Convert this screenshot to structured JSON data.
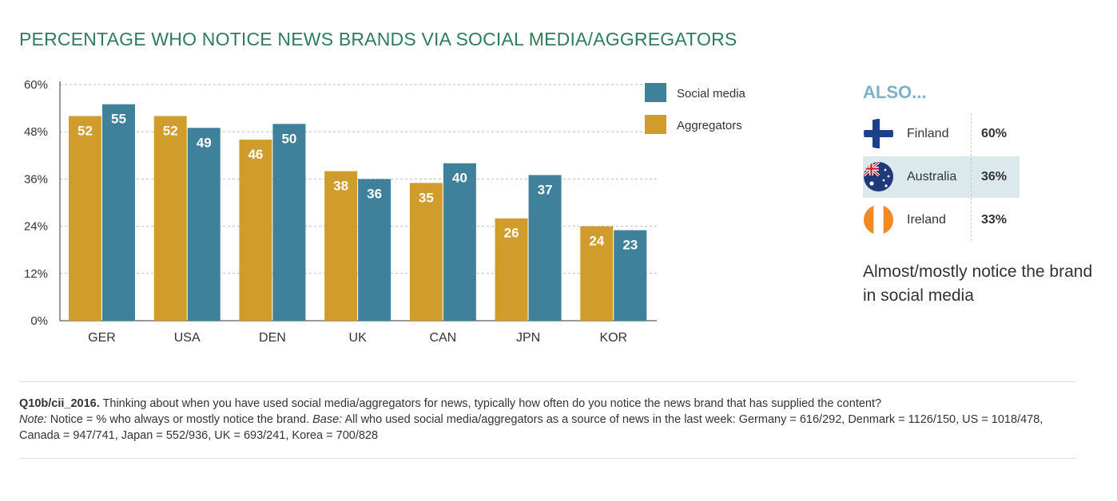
{
  "title": "PERCENTAGE WHO NOTICE NEWS BRANDS VIA SOCIAL MEDIA/AGGREGATORS",
  "colors": {
    "title": "#2e7d5a",
    "social": "#3f819b",
    "aggregators": "#d09c2b",
    "also_title": "#7db1c5",
    "highlight": "#dbe9ec"
  },
  "chart_data": {
    "type": "bar",
    "categories": [
      "GER",
      "USA",
      "DEN",
      "UK",
      "CAN",
      "JPN",
      "KOR"
    ],
    "series": [
      {
        "name": "Aggregators",
        "values": [
          52,
          52,
          46,
          38,
          35,
          26,
          24
        ],
        "color": "#d09c2b"
      },
      {
        "name": "Social media",
        "values": [
          55,
          49,
          50,
          36,
          40,
          37,
          23
        ],
        "color": "#3f819b"
      }
    ],
    "ylim": [
      0,
      60
    ],
    "yticks": [
      0,
      12,
      24,
      36,
      48,
      60
    ],
    "ytick_labels": [
      "0%",
      "12%",
      "24%",
      "36%",
      "48%",
      "60%"
    ],
    "legend_order": [
      "Social media",
      "Aggregators"
    ],
    "legend_position": "top-right",
    "grid": true,
    "data_labels": true
  },
  "also": {
    "title": "ALSO...",
    "items": [
      {
        "country": "Finland",
        "value": "60%",
        "flag": "finland-flag-icon",
        "highlight": false
      },
      {
        "country": "Australia",
        "value": "36%",
        "flag": "australia-flag-icon",
        "highlight": true
      },
      {
        "country": "Ireland",
        "value": "33%",
        "flag": "ireland-flag-icon",
        "highlight": false
      }
    ],
    "caption": "Almost/mostly notice the brand in social media"
  },
  "footnote": {
    "question_id": "Q10b/cii_2016.",
    "question": " Thinking about when you have used social media/aggregators for news, typically how often do you notice the news brand that has supplied the content?",
    "note_label": "Note:",
    "note": " Notice = % who always or mostly notice the brand. ",
    "base_label": "Base:",
    "base": " All who used social media/aggregators as a source of news in the last week: Germany = 616/292, Denmark = 1126/150, US = 1018/478, Canada = 947/741, Japan = 552/936, UK = 693/241, Korea = 700/828"
  }
}
